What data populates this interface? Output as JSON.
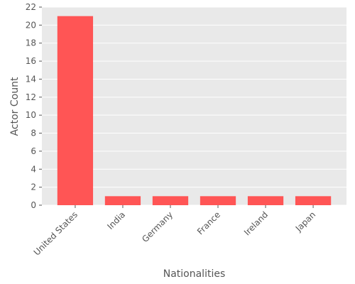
{
  "chart_data": {
    "type": "bar",
    "categories": [
      "United States",
      "India",
      "Germany",
      "France",
      "Ireland",
      "Japan"
    ],
    "values": [
      21,
      1,
      1,
      1,
      1,
      1
    ],
    "title": "",
    "xlabel": "Nationalities",
    "ylabel": "Actor Count",
    "ylim": [
      0,
      22
    ],
    "yticks": [
      0,
      2,
      4,
      6,
      8,
      10,
      12,
      14,
      16,
      18,
      20,
      22
    ],
    "grid": true,
    "bar_color": "#ff5555",
    "plot_background": "#e9e9e9",
    "grid_color": "#ffffff"
  }
}
